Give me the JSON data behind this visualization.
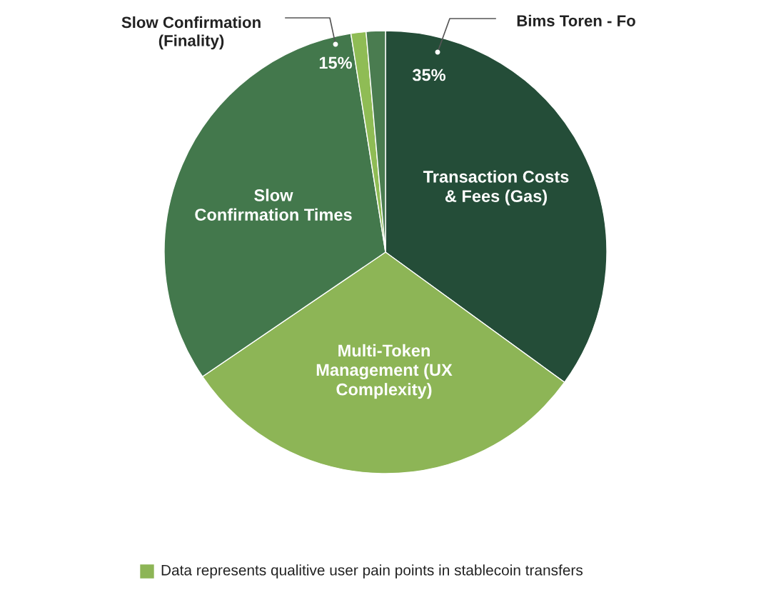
{
  "chart_data": {
    "type": "pie",
    "categories": [
      "Transaction Costs\n& Fees (Gas)",
      "Multi-Token\nManagement (UX\nComplexity)",
      "Slow\nConfirmation Times",
      null,
      null
    ],
    "values": [
      35,
      30.5,
      32,
      1.1,
      1.4
    ],
    "colors": [
      "#244d38",
      "#8db556",
      "#43784c",
      "#8fbc55",
      "#4a7c50"
    ],
    "value_labels": [
      "35%",
      null,
      null,
      null,
      null
    ],
    "annotations": [
      "Slow Confirmation\n(Finality)",
      "Bims Toren - Fo",
      "15%",
      "Data represents qualitive user pain points in stablecoin transfers"
    ]
  }
}
